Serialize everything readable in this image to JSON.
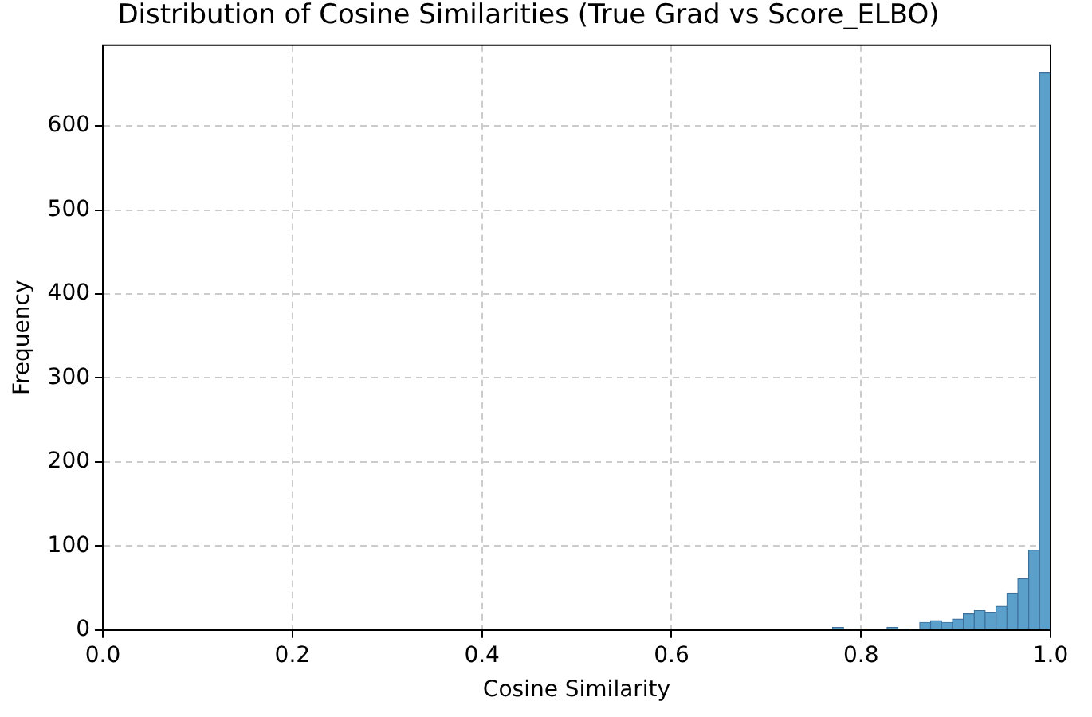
{
  "chart_data": {
    "type": "histogram",
    "title": "Distribution of Cosine Similarities (True Grad vs Score_ELBO)",
    "xlabel": "Cosine Similarity",
    "ylabel": "Frequency",
    "bins": [
      0.77,
      0.7815,
      0.793,
      0.8045,
      0.816,
      0.8275,
      0.839,
      0.8505,
      0.862,
      0.8735,
      0.885,
      0.8965,
      0.908,
      0.9195,
      0.931,
      0.9425,
      0.954,
      0.9655,
      0.977,
      0.9885,
      1.0
    ],
    "values": [
      3,
      0,
      1,
      0,
      0,
      3,
      1,
      0,
      9,
      11,
      9,
      13,
      19,
      23,
      21,
      28,
      44,
      61,
      95,
      663
    ],
    "color": "#5b9fcb",
    "xlim": [
      0,
      1
    ],
    "xticks": [
      {
        "value": 0,
        "label": "0.0"
      },
      {
        "value": 0.2,
        "label": "0.2"
      },
      {
        "value": 0.4,
        "label": "0.4"
      },
      {
        "value": 0.6,
        "label": "0.6"
      },
      {
        "value": 0.8,
        "label": "0.8"
      },
      {
        "value": 1,
        "label": "1.0"
      }
    ],
    "ylim": [
      0,
      696
    ],
    "yticks": [
      0,
      100,
      200,
      300,
      400,
      500,
      600
    ],
    "grid": true,
    "legend": false
  }
}
